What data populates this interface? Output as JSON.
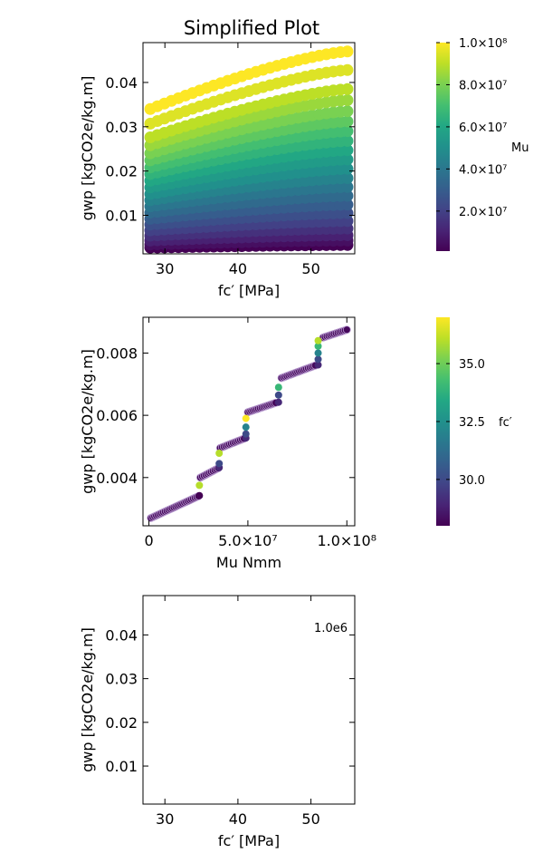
{
  "figure": {
    "title": "Simplified Plot"
  },
  "colors": {
    "viridis": [
      "#440154",
      "#482475",
      "#414487",
      "#355f8d",
      "#2a788e",
      "#21918c",
      "#22a884",
      "#44bf70",
      "#7ad151",
      "#bddf26",
      "#fde725"
    ]
  },
  "chart_data": [
    {
      "type": "scatter",
      "title": "Simplified Plot",
      "xlabel": "fc′ [MPa]",
      "ylabel": "gwp [kgCO2e/kg.m]",
      "xlim": [
        27,
        56
      ],
      "ylim": [
        0.0013,
        0.049
      ],
      "xticks": [
        30,
        40,
        50
      ],
      "yticks": [
        0.01,
        0.02,
        0.03,
        0.04
      ],
      "xtick_labels": [
        "30",
        "40",
        "50"
      ],
      "ytick_labels": [
        "0.01",
        "0.02",
        "0.03",
        "0.04"
      ],
      "x_range": [
        28,
        55
      ],
      "color_by": "Mu",
      "series_note": "bands of points, one per Mu level, gwp rising with fc′",
      "bands": [
        {
          "gwp_at_28": 0.034,
          "gwp_at_55": 0.047,
          "mu": 100000000
        },
        {
          "gwp_at_28": 0.0307,
          "gwp_at_55": 0.0428,
          "mu": 95000000
        },
        {
          "gwp_at_28": 0.0276,
          "gwp_at_55": 0.0385,
          "mu": 90000000
        },
        {
          "gwp_at_28": 0.0258,
          "gwp_at_55": 0.036,
          "mu": 85000000
        },
        {
          "gwp_at_28": 0.024,
          "gwp_at_55": 0.0335,
          "mu": 80000000
        },
        {
          "gwp_at_28": 0.0224,
          "gwp_at_55": 0.0312,
          "mu": 75000000
        },
        {
          "gwp_at_28": 0.0208,
          "gwp_at_55": 0.029,
          "mu": 70000000
        },
        {
          "gwp_at_28": 0.0193,
          "gwp_at_55": 0.0268,
          "mu": 65000000
        },
        {
          "gwp_at_28": 0.0178,
          "gwp_at_55": 0.0247,
          "mu": 60000000
        },
        {
          "gwp_at_28": 0.0163,
          "gwp_at_55": 0.0226,
          "mu": 55000000
        },
        {
          "gwp_at_28": 0.0148,
          "gwp_at_55": 0.0205,
          "mu": 50000000
        },
        {
          "gwp_at_28": 0.0134,
          "gwp_at_55": 0.0184,
          "mu": 45000000
        },
        {
          "gwp_at_28": 0.012,
          "gwp_at_55": 0.0164,
          "mu": 40000000
        },
        {
          "gwp_at_28": 0.0106,
          "gwp_at_55": 0.0144,
          "mu": 35000000
        },
        {
          "gwp_at_28": 0.0092,
          "gwp_at_55": 0.0124,
          "mu": 30000000
        },
        {
          "gwp_at_28": 0.0079,
          "gwp_at_55": 0.0105,
          "mu": 25000000
        },
        {
          "gwp_at_28": 0.0066,
          "gwp_at_55": 0.0087,
          "mu": 20000000
        },
        {
          "gwp_at_28": 0.0054,
          "gwp_at_55": 0.007,
          "mu": 15000000
        },
        {
          "gwp_at_28": 0.0043,
          "gwp_at_55": 0.0055,
          "mu": 10000000
        },
        {
          "gwp_at_28": 0.0034,
          "gwp_at_55": 0.0043,
          "mu": 5000000
        },
        {
          "gwp_at_28": 0.0027,
          "gwp_at_55": 0.0033,
          "mu": 1000000
        }
      ],
      "colorbar": {
        "label": "Mu",
        "range": [
          1000000,
          100000000
        ],
        "ticks": [
          20000000,
          40000000,
          60000000,
          80000000,
          100000000
        ],
        "tick_labels": [
          "2.0×10⁷",
          "4.0×10⁷",
          "6.0×10⁷",
          "8.0×10⁷",
          "1.0×10⁸"
        ]
      }
    },
    {
      "type": "scatter",
      "xlabel": "Mu Nmm",
      "ylabel": "gwp [kgCO2e/kg.m]",
      "xlim": [
        -3000000,
        104000000
      ],
      "ylim": [
        0.00245,
        0.00915
      ],
      "xticks": [
        0,
        50000000,
        100000000
      ],
      "xtick_labels": [
        "0",
        "5.0×10⁷",
        "1.0×10⁸"
      ],
      "yticks": [
        0.004,
        0.006,
        0.008
      ],
      "ytick_labels": [
        "0.004",
        "0.006",
        "0.008"
      ],
      "color_by": "fc′",
      "segments": [
        {
          "x_start": 1000000,
          "x_end": 25000000,
          "y_start": 0.0027,
          "y_end": 0.0034
        },
        {
          "x_start": 26000000,
          "x_end": 35000000,
          "y_start": 0.004,
          "y_end": 0.0043
        },
        {
          "x_start": 36000000,
          "x_end": 48000000,
          "y_start": 0.00495,
          "y_end": 0.00525
        },
        {
          "x_start": 50000000,
          "x_end": 64000000,
          "y_start": 0.0061,
          "y_end": 0.0064
        },
        {
          "x_start": 67000000,
          "x_end": 84000000,
          "y_start": 0.0072,
          "y_end": 0.0076
        },
        {
          "x_start": 88000000,
          "x_end": 100000000,
          "y_start": 0.0085,
          "y_end": 0.00875
        }
      ],
      "risers": [
        {
          "x": 25500000,
          "points": [
            [
              0.00342,
              28
            ],
            [
              0.00375,
              36
            ]
          ]
        },
        {
          "x": 35500000,
          "points": [
            [
              0.00432,
              29
            ],
            [
              0.00445,
              30
            ],
            [
              0.00478,
              36
            ]
          ]
        },
        {
          "x": 49000000,
          "points": [
            [
              0.00527,
              29
            ],
            [
              0.0054,
              30
            ],
            [
              0.00562,
              32
            ],
            [
              0.0059,
              37
            ]
          ]
        },
        {
          "x": 65500000,
          "points": [
            [
              0.00642,
              29
            ],
            [
              0.00665,
              30
            ],
            [
              0.0069,
              34
            ]
          ]
        },
        {
          "x": 85500000,
          "points": [
            [
              0.00762,
              29
            ],
            [
              0.0078,
              30
            ],
            [
              0.008,
              32
            ],
            [
              0.00822,
              34
            ],
            [
              0.0084,
              36
            ]
          ]
        }
      ],
      "colorbar": {
        "label": "fc′",
        "range": [
          28,
          37
        ],
        "ticks": [
          30,
          32.5,
          35
        ],
        "tick_labels": [
          "30.0",
          "32.5",
          "35.0"
        ]
      }
    },
    {
      "type": "scatter",
      "xlabel": "fc′ [MPa]",
      "ylabel": "gwp [kgCO2e/kg.m]",
      "xlim": [
        27,
        56
      ],
      "ylim": [
        0.0013,
        0.049
      ],
      "xticks": [
        30,
        40,
        50
      ],
      "xtick_labels": [
        "30",
        "40",
        "50"
      ],
      "yticks": [
        0.01,
        0.02,
        0.03,
        0.04
      ],
      "ytick_labels": [
        "0.01",
        "0.02",
        "0.03",
        "0.04"
      ],
      "annotation": "1.0e6",
      "points": []
    }
  ]
}
